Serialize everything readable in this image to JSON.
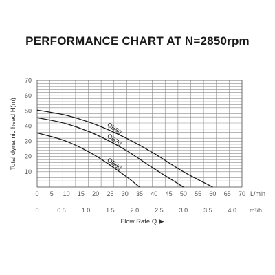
{
  "chart_data": {
    "type": "line",
    "title": "PERFORMANCE CHART AT N=2850rpm",
    "ylabel": "Total dynamic head H(m)",
    "xlabel": "Flow Rate Q",
    "ylim": [
      0,
      70
    ],
    "yticks": [
      10,
      20,
      30,
      40,
      50,
      60,
      70
    ],
    "xlim_lmin": [
      0,
      70
    ],
    "xticks_lmin": [
      0,
      5,
      10,
      15,
      20,
      25,
      30,
      35,
      40,
      45,
      50,
      55,
      60,
      65,
      70
    ],
    "xunit_lmin": "L/min",
    "xticks_m3h": [
      "0",
      "0.5",
      "1.0",
      "1.5",
      "2.0",
      "2.5",
      "3.0",
      "3.5",
      "4.0"
    ],
    "xtick_values_m3h": [
      0,
      0.5,
      1.0,
      1.5,
      2.0,
      2.5,
      3.0,
      3.5,
      4.0
    ],
    "xunit_m3h": "m³/h",
    "grid": true,
    "series": [
      {
        "name": "QB80",
        "x": [
          0,
          10,
          20,
          30,
          40,
          50,
          60
        ],
        "y": [
          50.5,
          47,
          41,
          32.5,
          22,
          10,
          0
        ]
      },
      {
        "name": "QB70",
        "x": [
          0,
          10,
          20,
          30,
          40,
          50
        ],
        "y": [
          45.5,
          41.5,
          34.5,
          24.5,
          12,
          0
        ]
      },
      {
        "name": "QB60",
        "x": [
          0,
          10,
          20,
          30,
          35
        ],
        "y": [
          35.5,
          30,
          20.5,
          7.5,
          0
        ]
      }
    ]
  }
}
